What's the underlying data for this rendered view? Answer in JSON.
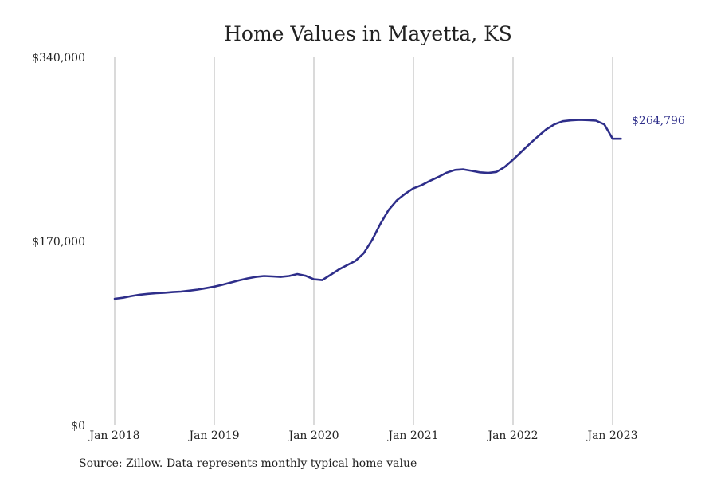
{
  "chart_data": {
    "type": "line",
    "title": "Home Values in Mayetta, KS",
    "xlabel": "",
    "ylabel": "",
    "x_range": [
      "2018-01",
      "2023-02"
    ],
    "ylim": [
      0,
      340000
    ],
    "y_ticks": [
      {
        "value": 0,
        "label": "$0"
      },
      {
        "value": 170000,
        "label": "$170,000"
      },
      {
        "value": 340000,
        "label": "$340,000"
      }
    ],
    "x_ticks": [
      {
        "date": "2018-01",
        "label": "Jan 2018"
      },
      {
        "date": "2019-01",
        "label": "Jan 2019"
      },
      {
        "date": "2020-01",
        "label": "Jan 2020"
      },
      {
        "date": "2021-01",
        "label": "Jan 2021"
      },
      {
        "date": "2022-01",
        "label": "Jan 2022"
      },
      {
        "date": "2023-01",
        "label": "Jan 2023"
      }
    ],
    "grid": "vertical",
    "line_color": "#2e2e8a",
    "series": [
      {
        "x": [
          "2018-01",
          "2018-02",
          "2018-03",
          "2018-04",
          "2018-05",
          "2018-06",
          "2018-07",
          "2018-08",
          "2018-09",
          "2018-10",
          "2018-11",
          "2018-12",
          "2019-01",
          "2019-02",
          "2019-03",
          "2019-04",
          "2019-05",
          "2019-06",
          "2019-07",
          "2019-08",
          "2019-09",
          "2019-10",
          "2019-11",
          "2019-12",
          "2020-01",
          "2020-02",
          "2020-03",
          "2020-04",
          "2020-05",
          "2020-06",
          "2020-07",
          "2020-08",
          "2020-09",
          "2020-10",
          "2020-11",
          "2020-12",
          "2021-01",
          "2021-02",
          "2021-03",
          "2021-04",
          "2021-05",
          "2021-06",
          "2021-07",
          "2021-08",
          "2021-09",
          "2021-10",
          "2021-11",
          "2021-12",
          "2022-01",
          "2022-02",
          "2022-03",
          "2022-04",
          "2022-05",
          "2022-06",
          "2022-07",
          "2022-08",
          "2022-09",
          "2022-10",
          "2022-11",
          "2022-12",
          "2023-01",
          "2023-02"
        ],
        "values": [
          117000,
          118000,
          119500,
          120800,
          121600,
          122200,
          122600,
          123200,
          123600,
          124500,
          125500,
          126800,
          128200,
          130000,
          132000,
          134000,
          135800,
          137200,
          138000,
          137600,
          137200,
          138000,
          139800,
          138200,
          135000,
          134200,
          139000,
          144000,
          148000,
          152000,
          159000,
          171000,
          186000,
          199000,
          208000,
          214000,
          219000,
          222000,
          226000,
          229500,
          233500,
          236000,
          236500,
          235200,
          233800,
          233200,
          234200,
          238800,
          245500,
          252800,
          260000,
          267000,
          273500,
          278200,
          281000,
          281800,
          282200,
          282000,
          281500,
          278000,
          264796,
          264796
        ],
        "end_label": "$264,796"
      }
    ]
  },
  "source_note": "Source: Zillow. Data represents monthly typical home value"
}
